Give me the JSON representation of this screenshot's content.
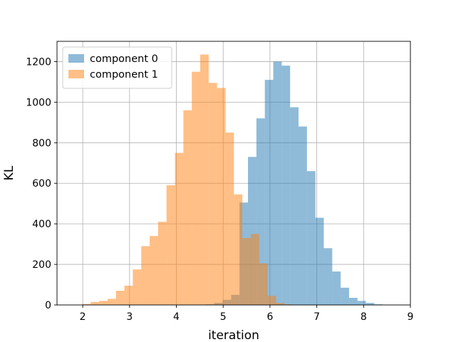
{
  "chart_data": {
    "type": "bar",
    "xlabel": "iteration",
    "ylabel": "KL",
    "xlim": [
      1.45,
      9.0
    ],
    "ylim": [
      0,
      1300
    ],
    "xticks": [
      2,
      3,
      4,
      5,
      6,
      7,
      8,
      9
    ],
    "yticks": [
      0,
      200,
      400,
      600,
      800,
      1000,
      1200
    ],
    "grid": true,
    "legend_position": "top-left",
    "bar_opacity": 0.5,
    "series": [
      {
        "name": "component 0",
        "color": "#1f77b4",
        "bins": [
          {
            "x0": 4.63,
            "x1": 4.81,
            "value": 3
          },
          {
            "x0": 4.81,
            "x1": 4.99,
            "value": 10
          },
          {
            "x0": 4.99,
            "x1": 5.17,
            "value": 25
          },
          {
            "x0": 5.17,
            "x1": 5.35,
            "value": 50
          },
          {
            "x0": 5.35,
            "x1": 5.53,
            "value": 505
          },
          {
            "x0": 5.53,
            "x1": 5.71,
            "value": 730
          },
          {
            "x0": 5.71,
            "x1": 5.89,
            "value": 920
          },
          {
            "x0": 5.89,
            "x1": 6.07,
            "value": 1110
          },
          {
            "x0": 6.07,
            "x1": 6.25,
            "value": 1200
          },
          {
            "x0": 6.25,
            "x1": 6.43,
            "value": 1180
          },
          {
            "x0": 6.43,
            "x1": 6.61,
            "value": 975
          },
          {
            "x0": 6.61,
            "x1": 6.79,
            "value": 880
          },
          {
            "x0": 6.79,
            "x1": 6.97,
            "value": 660
          },
          {
            "x0": 6.97,
            "x1": 7.15,
            "value": 430
          },
          {
            "x0": 7.15,
            "x1": 7.33,
            "value": 280
          },
          {
            "x0": 7.33,
            "x1": 7.51,
            "value": 165
          },
          {
            "x0": 7.51,
            "x1": 7.69,
            "value": 85
          },
          {
            "x0": 7.69,
            "x1": 7.87,
            "value": 35
          },
          {
            "x0": 7.87,
            "x1": 8.05,
            "value": 20
          },
          {
            "x0": 8.05,
            "x1": 8.23,
            "value": 10
          },
          {
            "x0": 8.23,
            "x1": 8.41,
            "value": 3
          }
        ]
      },
      {
        "name": "component 1",
        "color": "#ff7f0e",
        "bins": [
          {
            "x0": 1.99,
            "x1": 2.17,
            "value": 5
          },
          {
            "x0": 2.17,
            "x1": 2.35,
            "value": 15
          },
          {
            "x0": 2.35,
            "x1": 2.53,
            "value": 20
          },
          {
            "x0": 2.53,
            "x1": 2.71,
            "value": 30
          },
          {
            "x0": 2.71,
            "x1": 2.89,
            "value": 70
          },
          {
            "x0": 2.89,
            "x1": 3.07,
            "value": 95
          },
          {
            "x0": 3.07,
            "x1": 3.25,
            "value": 175
          },
          {
            "x0": 3.25,
            "x1": 3.43,
            "value": 290
          },
          {
            "x0": 3.43,
            "x1": 3.61,
            "value": 340
          },
          {
            "x0": 3.61,
            "x1": 3.79,
            "value": 410
          },
          {
            "x0": 3.79,
            "x1": 3.97,
            "value": 590
          },
          {
            "x0": 3.97,
            "x1": 4.15,
            "value": 750
          },
          {
            "x0": 4.15,
            "x1": 4.33,
            "value": 960
          },
          {
            "x0": 4.33,
            "x1": 4.51,
            "value": 1150
          },
          {
            "x0": 4.51,
            "x1": 4.69,
            "value": 1235
          },
          {
            "x0": 4.69,
            "x1": 4.87,
            "value": 1095
          },
          {
            "x0": 4.87,
            "x1": 5.05,
            "value": 1070
          },
          {
            "x0": 5.05,
            "x1": 5.23,
            "value": 850
          },
          {
            "x0": 5.23,
            "x1": 5.41,
            "value": 545
          },
          {
            "x0": 5.41,
            "x1": 5.59,
            "value": 330
          },
          {
            "x0": 5.59,
            "x1": 5.77,
            "value": 350
          },
          {
            "x0": 5.77,
            "x1": 5.95,
            "value": 205
          },
          {
            "x0": 5.95,
            "x1": 6.13,
            "value": 45
          },
          {
            "x0": 6.13,
            "x1": 6.31,
            "value": 10
          },
          {
            "x0": 6.31,
            "x1": 6.49,
            "value": 3
          }
        ]
      }
    ]
  }
}
